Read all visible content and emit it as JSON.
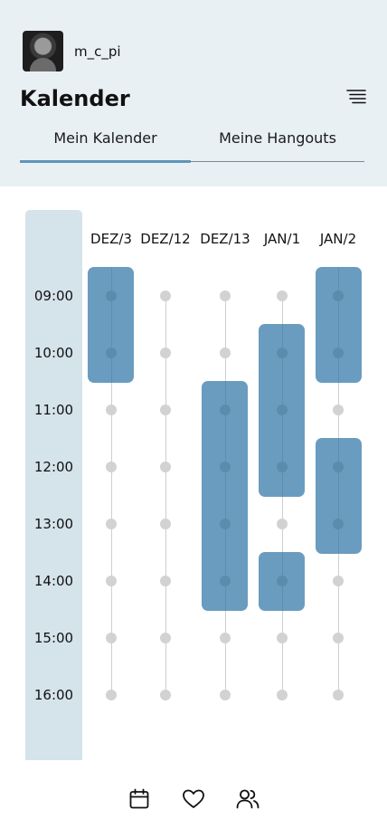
{
  "user": {
    "username": "m_c_pi"
  },
  "page": {
    "title": "Kalender"
  },
  "tabs": [
    {
      "label": "Mein Kalender",
      "active": true
    },
    {
      "label": "Meine Hangouts",
      "active": false
    }
  ],
  "calendar": {
    "days": [
      "DEZ/3",
      "DEZ/12",
      "DEZ/13",
      "JAN/1",
      "JAN/2"
    ],
    "times": [
      "09:00",
      "10:00",
      "11:00",
      "12:00",
      "13:00",
      "14:00",
      "15:00",
      "16:00"
    ],
    "events": [
      {
        "day": "DEZ/3",
        "start": "08:30",
        "end": "10:30"
      },
      {
        "day": "DEZ/13",
        "start": "10:30",
        "end": "14:30"
      },
      {
        "day": "JAN/1",
        "start": "09:30",
        "end": "12:30"
      },
      {
        "day": "JAN/1",
        "start": "13:30",
        "end": "14:30"
      },
      {
        "day": "JAN/2",
        "start": "08:30",
        "end": "10:30"
      },
      {
        "day": "JAN/2",
        "start": "11:30",
        "end": "13:30"
      }
    ]
  },
  "colors": {
    "accent": "#6a9cbf",
    "header_bg": "#e9f0f4",
    "time_column_bg": "#d5e3eb",
    "dot": "#d2d2d2"
  },
  "nav": {
    "icons": [
      "calendar-icon",
      "heart-icon",
      "friends-icon"
    ]
  }
}
